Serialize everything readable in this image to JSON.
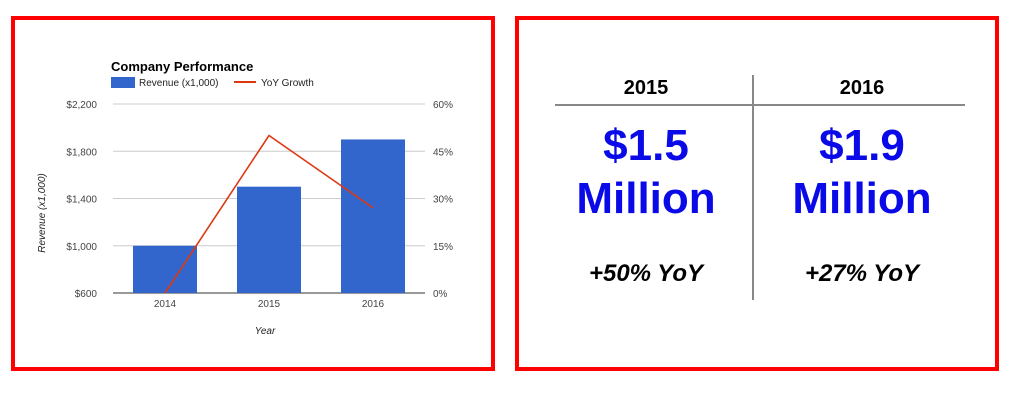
{
  "chart_data": {
    "type": "bar",
    "title": "Company Performance",
    "categories": [
      "2014",
      "2015",
      "2016"
    ],
    "series": [
      {
        "name": "Revenue (x1,000)",
        "type": "bar",
        "axis": "left",
        "color": "#3366cc",
        "values": [
          1000,
          1500,
          1900
        ]
      },
      {
        "name": "YoY Growth",
        "type": "line",
        "axis": "right",
        "color": "#dc3912",
        "values": [
          0,
          50,
          27
        ]
      }
    ],
    "xlabel": "Year",
    "ylabel": "Revenue (x1,000)",
    "ylim": [
      600,
      2200
    ],
    "yticks": [
      "$600",
      "$1,000",
      "$1,400",
      "$1,800",
      "$2,200"
    ],
    "ytick_values": [
      600,
      1000,
      1400,
      1800,
      2200
    ],
    "y2lim": [
      0,
      60
    ],
    "y2ticks": [
      "0%",
      "15%",
      "30%",
      "45%",
      "60%"
    ],
    "y2tick_values": [
      0,
      15,
      30,
      45,
      60
    ],
    "grid": true,
    "legend": "top-left"
  },
  "summary": {
    "columns": [
      {
        "year": "2015",
        "amount": "$1.5",
        "unit": "Million",
        "yoy": "+50% YoY"
      },
      {
        "year": "2016",
        "amount": "$1.9",
        "unit": "Million",
        "yoy": "+27% YoY"
      }
    ],
    "accent_color": "#0a0ae8"
  },
  "colors": {
    "frame": "#ff0000"
  }
}
